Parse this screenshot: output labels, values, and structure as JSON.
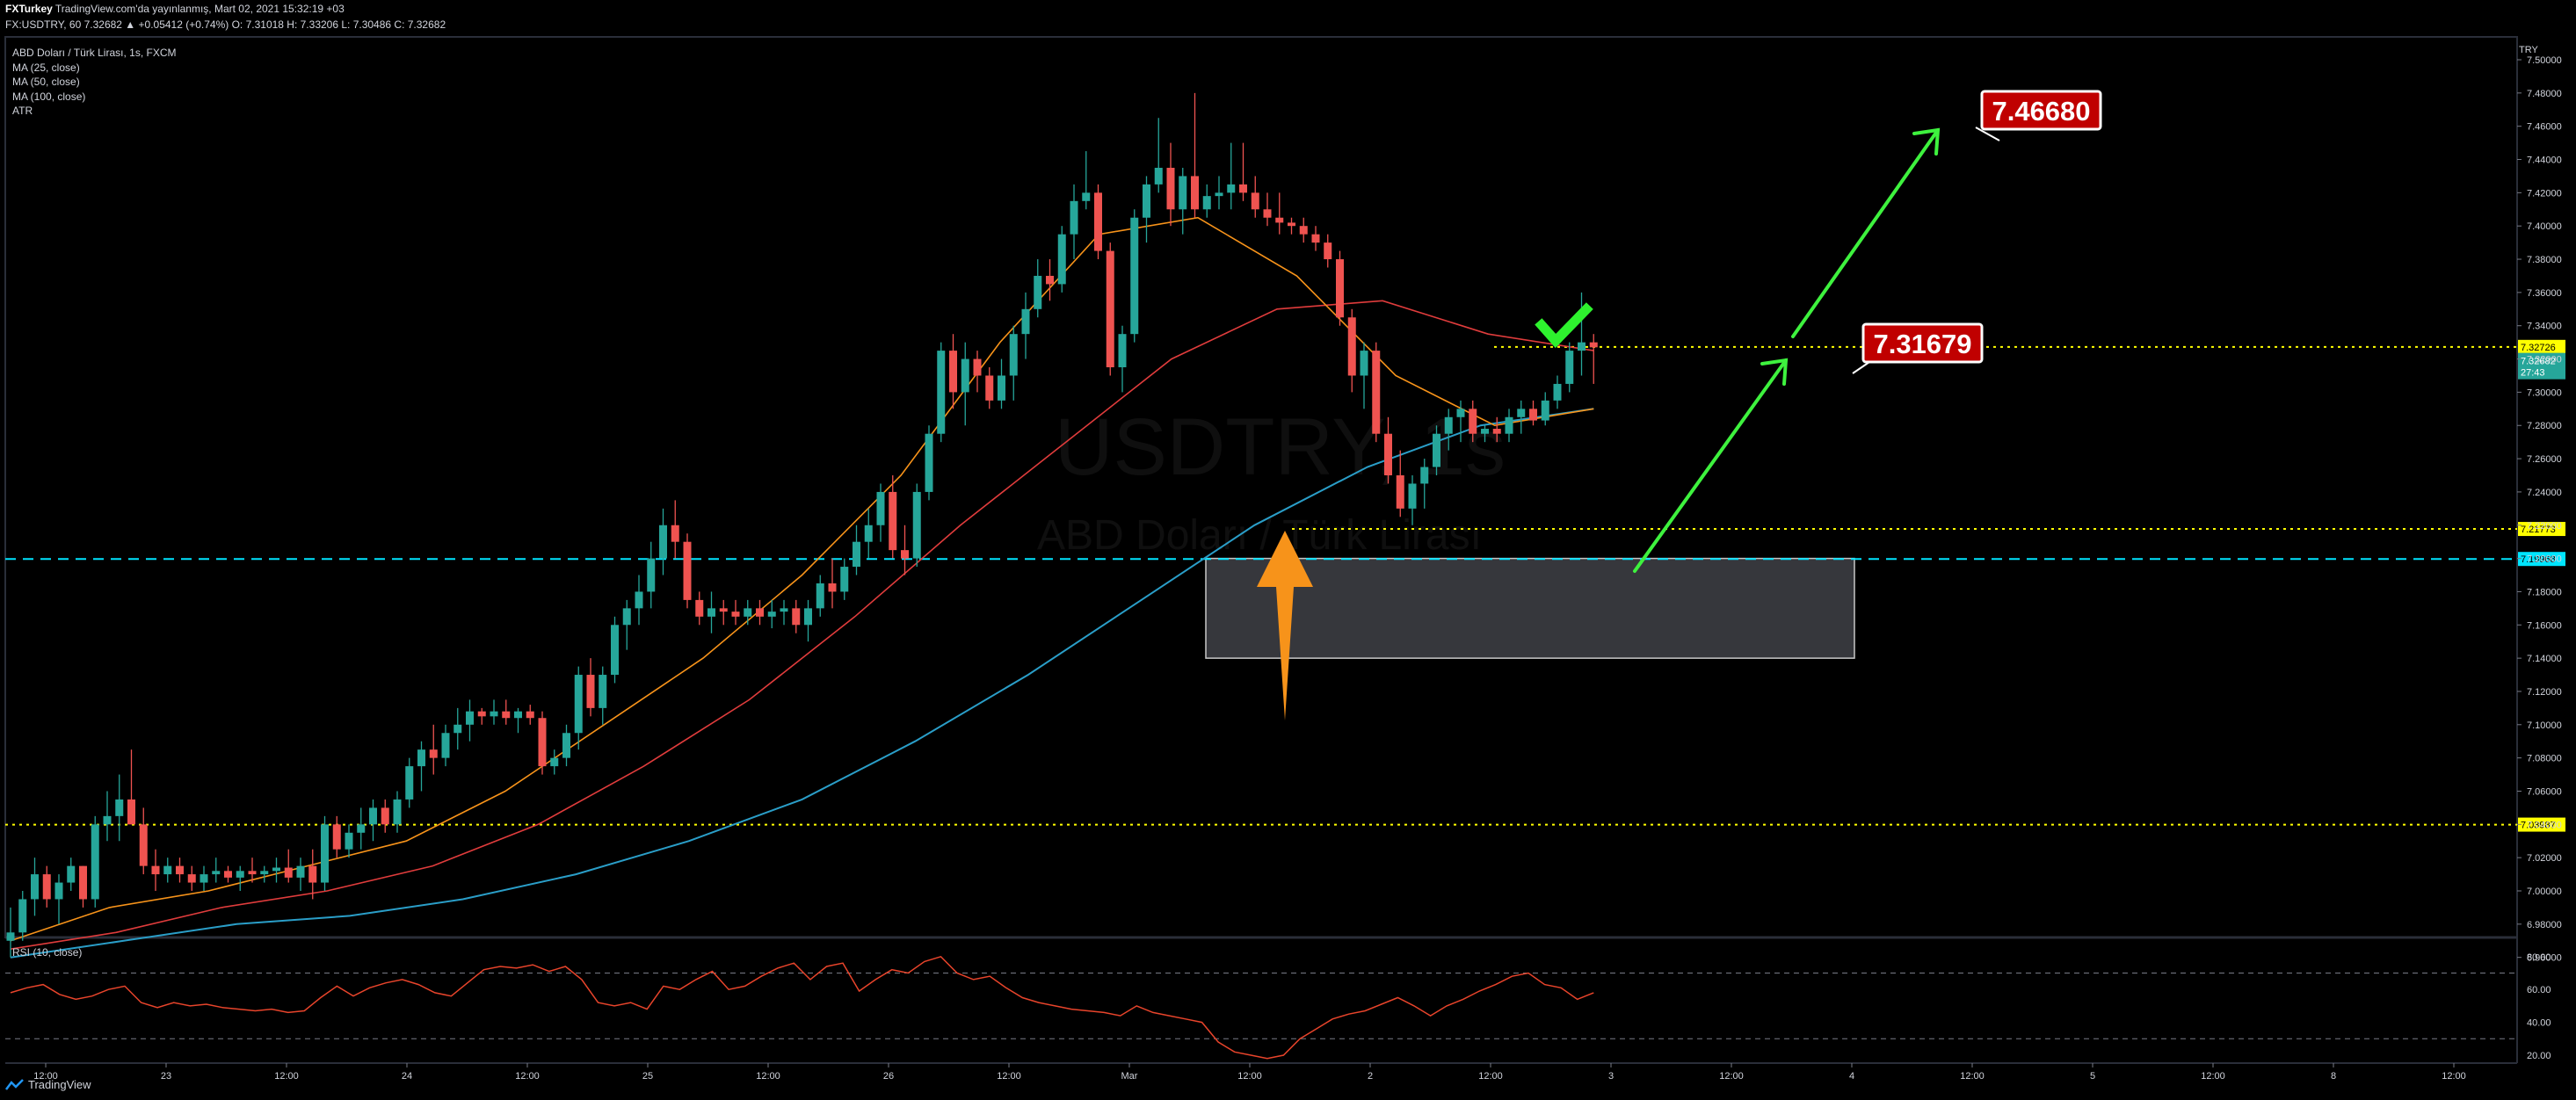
{
  "header": {
    "line1_author": "FXTurkey",
    "line1_rest": "TradingView.com'da yayınlanmış, Mart 02, 2021 15:32:19 +03",
    "line2": "FX:USDTRY, 60 7.32682 ▲ +0.05412 (+0.74%) O: 7.31018 H: 7.33206 L: 7.30486 C: 7.32682"
  },
  "legend": {
    "symbol": "ABD Doları / Türk Lirası, 1s, FXCM",
    "ma25": "MA (25, close)",
    "ma50": "MA (50, close)",
    "ma100": "MA (100, close)",
    "atr": "ATR"
  },
  "watermark": {
    "symbol": "USDTRY, 1s",
    "name": "ABD Doları / Türk Lirası"
  },
  "rsi_label": "RSI (10, close)",
  "currency": "TRY",
  "price_tags": {
    "level_7_32726": "7.32726",
    "last_price": "7.32682",
    "countdown": "27:43",
    "level_7_21773": "7.21773",
    "level_7_19968": "7.19968",
    "level_7_03987": "7.03987"
  },
  "annotations": {
    "target_high": "7.46680",
    "target_mid": "7.31679"
  },
  "footer": {
    "brand": "TradingView"
  },
  "colors": {
    "bull": "#26a69a",
    "bear": "#ef5350",
    "ma25": "#f7931a",
    "ma50": "#e03c3c",
    "ma100": "#2a9ec8",
    "rsi": "#e8442b",
    "yellow_level": "#ffff00",
    "cyan_level": "#00e5ff",
    "arrow_green": "#3ef23e",
    "arrow_orange": "#f7931a",
    "label_red": "#c00000"
  },
  "chart_data": {
    "type": "candlestick",
    "symbol": "FX:USDTRY",
    "interval": "60",
    "y_axis": {
      "ticks": [
        6.96,
        6.98,
        7.0,
        7.02,
        7.04,
        7.06,
        7.08,
        7.1,
        7.12,
        7.14,
        7.16,
        7.18,
        7.2,
        7.22,
        7.24,
        7.26,
        7.28,
        7.3,
        7.32,
        7.34,
        7.36,
        7.38,
        7.4,
        7.42,
        7.44,
        7.46,
        7.48,
        7.5
      ],
      "tick_labels": [
        "6.96000",
        "6.98000",
        "7.00000",
        "7.02000",
        "7.04000",
        "7.06000",
        "7.08000",
        "7.10000",
        "7.12000",
        "7.14000",
        "7.16000",
        "7.18000",
        "7.20000",
        "7.22000",
        "7.24000",
        "7.26000",
        "7.28000",
        "7.30000",
        "7.32000",
        "7.34000",
        "7.36000",
        "7.38000",
        "7.40000",
        "7.42000",
        "7.44000",
        "7.46000",
        "7.48000",
        "7.50000"
      ],
      "range": [
        6.955,
        7.52
      ]
    },
    "x_axis": {
      "labels": [
        "12:00",
        "23",
        "12:00",
        "24",
        "12:00",
        "25",
        "12:00",
        "26",
        "12:00",
        "Mar",
        "12:00",
        "2",
        "12:00",
        "3",
        "12:00",
        "4",
        "12:00",
        "5",
        "12:00",
        "8",
        "12:00"
      ],
      "bars_per_label": 12
    },
    "candles_ohlc": [
      [
        6.97,
        6.99,
        6.96,
        6.975
      ],
      [
        6.975,
        7.0,
        6.97,
        6.995
      ],
      [
        6.995,
        7.02,
        6.985,
        7.01
      ],
      [
        7.01,
        7.015,
        6.99,
        6.995
      ],
      [
        6.995,
        7.01,
        6.98,
        7.005
      ],
      [
        7.005,
        7.02,
        7.0,
        7.015
      ],
      [
        7.015,
        7.015,
        6.99,
        6.995
      ],
      [
        6.995,
        7.045,
        6.99,
        7.04
      ],
      [
        7.04,
        7.06,
        7.03,
        7.045
      ],
      [
        7.045,
        7.07,
        7.03,
        7.055
      ],
      [
        7.055,
        7.085,
        7.04,
        7.04
      ],
      [
        7.04,
        7.05,
        7.01,
        7.015
      ],
      [
        7.015,
        7.025,
        7.0,
        7.01
      ],
      [
        7.01,
        7.02,
        7.005,
        7.015
      ],
      [
        7.015,
        7.02,
        7.005,
        7.01
      ],
      [
        7.01,
        7.015,
        7.0,
        7.005
      ],
      [
        7.005,
        7.015,
        7.0,
        7.01
      ],
      [
        7.01,
        7.02,
        7.005,
        7.012
      ],
      [
        7.012,
        7.015,
        7.005,
        7.008
      ],
      [
        7.008,
        7.015,
        7.0,
        7.012
      ],
      [
        7.012,
        7.02,
        7.005,
        7.01
      ],
      [
        7.01,
        7.015,
        7.005,
        7.012
      ],
      [
        7.012,
        7.02,
        7.005,
        7.014
      ],
      [
        7.014,
        7.025,
        7.005,
        7.008
      ],
      [
        7.008,
        7.02,
        7.0,
        7.015
      ],
      [
        7.015,
        7.025,
        6.995,
        7.005
      ],
      [
        7.005,
        7.045,
        7.0,
        7.04
      ],
      [
        7.04,
        7.045,
        7.02,
        7.025
      ],
      [
        7.025,
        7.04,
        7.02,
        7.035
      ],
      [
        7.035,
        7.05,
        7.025,
        7.04
      ],
      [
        7.04,
        7.055,
        7.03,
        7.05
      ],
      [
        7.05,
        7.055,
        7.035,
        7.04
      ],
      [
        7.04,
        7.06,
        7.035,
        7.055
      ],
      [
        7.055,
        7.08,
        7.05,
        7.075
      ],
      [
        7.075,
        7.09,
        7.06,
        7.085
      ],
      [
        7.085,
        7.1,
        7.07,
        7.08
      ],
      [
        7.08,
        7.1,
        7.075,
        7.095
      ],
      [
        7.095,
        7.11,
        7.085,
        7.1
      ],
      [
        7.1,
        7.115,
        7.09,
        7.108
      ],
      [
        7.108,
        7.11,
        7.1,
        7.105
      ],
      [
        7.105,
        7.115,
        7.1,
        7.108
      ],
      [
        7.108,
        7.115,
        7.1,
        7.104
      ],
      [
        7.104,
        7.11,
        7.095,
        7.108
      ],
      [
        7.108,
        7.112,
        7.1,
        7.104
      ],
      [
        7.104,
        7.108,
        7.07,
        7.075
      ],
      [
        7.075,
        7.085,
        7.07,
        7.08
      ],
      [
        7.08,
        7.1,
        7.075,
        7.095
      ],
      [
        7.095,
        7.135,
        7.085,
        7.13
      ],
      [
        7.13,
        7.14,
        7.105,
        7.11
      ],
      [
        7.11,
        7.135,
        7.1,
        7.13
      ],
      [
        7.13,
        7.165,
        7.125,
        7.16
      ],
      [
        7.16,
        7.175,
        7.145,
        7.17
      ],
      [
        7.17,
        7.19,
        7.16,
        7.18
      ],
      [
        7.18,
        7.21,
        7.17,
        7.2
      ],
      [
        7.2,
        7.23,
        7.19,
        7.22
      ],
      [
        7.22,
        7.235,
        7.2,
        7.21
      ],
      [
        7.21,
        7.215,
        7.17,
        7.175
      ],
      [
        7.175,
        7.18,
        7.16,
        7.165
      ],
      [
        7.165,
        7.18,
        7.155,
        7.17
      ],
      [
        7.17,
        7.175,
        7.16,
        7.168
      ],
      [
        7.168,
        7.175,
        7.16,
        7.165
      ],
      [
        7.165,
        7.175,
        7.16,
        7.17
      ],
      [
        7.17,
        7.175,
        7.16,
        7.165
      ],
      [
        7.165,
        7.175,
        7.158,
        7.168
      ],
      [
        7.168,
        7.175,
        7.16,
        7.17
      ],
      [
        7.17,
        7.175,
        7.155,
        7.16
      ],
      [
        7.16,
        7.175,
        7.15,
        7.17
      ],
      [
        7.17,
        7.19,
        7.165,
        7.185
      ],
      [
        7.185,
        7.2,
        7.17,
        7.18
      ],
      [
        7.18,
        7.2,
        7.175,
        7.195
      ],
      [
        7.195,
        7.22,
        7.19,
        7.21
      ],
      [
        7.21,
        7.23,
        7.2,
        7.22
      ],
      [
        7.22,
        7.245,
        7.21,
        7.24
      ],
      [
        7.24,
        7.25,
        7.2,
        7.205
      ],
      [
        7.205,
        7.22,
        7.19,
        7.2
      ],
      [
        7.2,
        7.245,
        7.195,
        7.24
      ],
      [
        7.24,
        7.28,
        7.235,
        7.275
      ],
      [
        7.275,
        7.33,
        7.27,
        7.325
      ],
      [
        7.325,
        7.335,
        7.29,
        7.3
      ],
      [
        7.3,
        7.33,
        7.28,
        7.32
      ],
      [
        7.32,
        7.325,
        7.3,
        7.31
      ],
      [
        7.31,
        7.315,
        7.29,
        7.295
      ],
      [
        7.295,
        7.32,
        7.29,
        7.31
      ],
      [
        7.31,
        7.34,
        7.295,
        7.335
      ],
      [
        7.335,
        7.36,
        7.32,
        7.35
      ],
      [
        7.35,
        7.38,
        7.345,
        7.37
      ],
      [
        7.37,
        7.38,
        7.355,
        7.365
      ],
      [
        7.365,
        7.4,
        7.36,
        7.395
      ],
      [
        7.395,
        7.425,
        7.38,
        7.415
      ],
      [
        7.415,
        7.445,
        7.41,
        7.42
      ],
      [
        7.42,
        7.425,
        7.38,
        7.385
      ],
      [
        7.385,
        7.39,
        7.31,
        7.315
      ],
      [
        7.315,
        7.34,
        7.3,
        7.335
      ],
      [
        7.335,
        7.41,
        7.33,
        7.405
      ],
      [
        7.405,
        7.43,
        7.39,
        7.425
      ],
      [
        7.425,
        7.465,
        7.42,
        7.435
      ],
      [
        7.435,
        7.45,
        7.4,
        7.41
      ],
      [
        7.41,
        7.435,
        7.395,
        7.43
      ],
      [
        7.43,
        7.48,
        7.405,
        7.41
      ],
      [
        7.41,
        7.425,
        7.405,
        7.418
      ],
      [
        7.418,
        7.43,
        7.41,
        7.42
      ],
      [
        7.42,
        7.45,
        7.41,
        7.425
      ],
      [
        7.425,
        7.45,
        7.415,
        7.42
      ],
      [
        7.42,
        7.43,
        7.405,
        7.41
      ],
      [
        7.41,
        7.42,
        7.4,
        7.405
      ],
      [
        7.405,
        7.42,
        7.395,
        7.402
      ],
      [
        7.402,
        7.405,
        7.395,
        7.4
      ],
      [
        7.4,
        7.405,
        7.39,
        7.395
      ],
      [
        7.395,
        7.4,
        7.385,
        7.39
      ],
      [
        7.39,
        7.395,
        7.375,
        7.38
      ],
      [
        7.38,
        7.385,
        7.34,
        7.345
      ],
      [
        7.345,
        7.35,
        7.3,
        7.31
      ],
      [
        7.31,
        7.33,
        7.29,
        7.325
      ],
      [
        7.325,
        7.33,
        7.27,
        7.275
      ],
      [
        7.275,
        7.285,
        7.245,
        7.25
      ],
      [
        7.25,
        7.265,
        7.225,
        7.23
      ],
      [
        7.23,
        7.25,
        7.22,
        7.245
      ],
      [
        7.245,
        7.26,
        7.23,
        7.255
      ],
      [
        7.255,
        7.28,
        7.25,
        7.275
      ],
      [
        7.275,
        7.29,
        7.265,
        7.285
      ],
      [
        7.285,
        7.295,
        7.27,
        7.29
      ],
      [
        7.29,
        7.295,
        7.27,
        7.275
      ],
      [
        7.275,
        7.28,
        7.27,
        7.278
      ],
      [
        7.278,
        7.285,
        7.27,
        7.275
      ],
      [
        7.275,
        7.29,
        7.27,
        7.285
      ],
      [
        7.285,
        7.295,
        7.275,
        7.29
      ],
      [
        7.29,
        7.295,
        7.28,
        7.283
      ],
      [
        7.283,
        7.3,
        7.28,
        7.295
      ],
      [
        7.295,
        7.31,
        7.29,
        7.305
      ],
      [
        7.305,
        7.33,
        7.3,
        7.325
      ],
      [
        7.325,
        7.36,
        7.31,
        7.33
      ],
      [
        7.33,
        7.335,
        7.305,
        7.327
      ]
    ],
    "ma25": [
      6.97,
      6.99,
      7.0,
      7.015,
      7.03,
      7.06,
      7.1,
      7.14,
      7.19,
      7.25,
      7.33,
      7.395,
      7.405,
      7.37,
      7.31,
      7.28,
      7.29
    ],
    "ma50": [
      6.965,
      6.975,
      6.99,
      7.0,
      7.015,
      7.04,
      7.075,
      7.115,
      7.165,
      7.22,
      7.27,
      7.32,
      7.35,
      7.355,
      7.335,
      7.325
    ],
    "ma100": [
      6.96,
      6.97,
      6.98,
      6.985,
      6.995,
      7.01,
      7.03,
      7.055,
      7.09,
      7.13,
      7.175,
      7.22,
      7.255,
      7.28,
      7.29
    ],
    "levels": [
      {
        "price": 7.32726,
        "style": "dotted",
        "color": "yellow"
      },
      {
        "price": 7.21773,
        "style": "dotted",
        "color": "yellow"
      },
      {
        "price": 7.19968,
        "style": "dashed",
        "color": "cyan"
      },
      {
        "price": 7.03987,
        "style": "dotted",
        "color": "yellow"
      }
    ],
    "zone": {
      "price_top": 7.2,
      "price_bottom": 7.14,
      "color": "grey"
    },
    "rsi": {
      "period": 10,
      "ticks": [
        20,
        40,
        60,
        80
      ],
      "tick_labels": [
        "20.00",
        "40.00",
        "60.00",
        "80.00"
      ],
      "bands": [
        30,
        70
      ],
      "values": [
        58,
        61,
        63,
        57,
        54,
        56,
        60,
        62,
        52,
        49,
        52,
        50,
        51,
        49,
        48,
        47,
        48,
        46,
        47,
        55,
        62,
        56,
        61,
        64,
        66,
        63,
        58,
        56,
        64,
        72,
        74,
        73,
        75,
        71,
        74,
        66,
        52,
        50,
        52,
        48,
        62,
        60,
        66,
        71,
        60,
        62,
        68,
        73,
        76,
        66,
        74,
        76,
        59,
        66,
        72,
        70,
        77,
        80,
        70,
        66,
        68,
        61,
        55,
        52,
        50,
        48,
        47,
        46,
        44,
        50,
        46,
        44,
        42,
        40,
        28,
        22,
        20,
        18,
        20,
        30,
        36,
        42,
        45,
        47,
        51,
        55,
        50,
        44,
        50,
        54,
        59,
        63,
        68,
        70,
        63,
        61,
        54,
        58
      ]
    }
  }
}
